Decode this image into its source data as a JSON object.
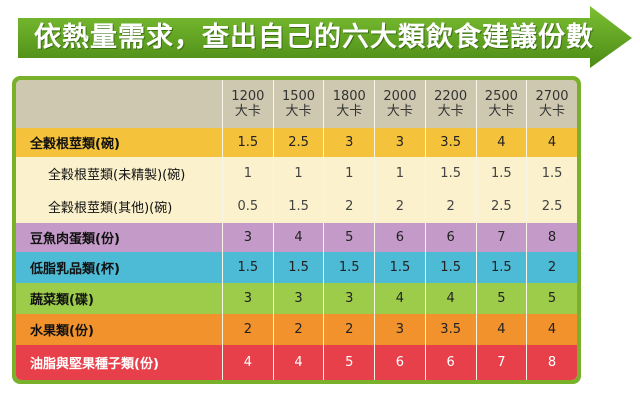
{
  "title": "依熱量需求，查出自己的六大類飲食建議份數",
  "header": {
    "calories": [
      "1200",
      "1500",
      "1800",
      "2000",
      "2200",
      "2500",
      "2700"
    ],
    "unit": "大卡"
  },
  "rows": [
    {
      "label": "全穀根莖類(碗)",
      "values": [
        "1.5",
        "2.5",
        "3",
        "3",
        "3.5",
        "4",
        "4"
      ]
    },
    {
      "label": "全穀根莖類(未精製)(碗)",
      "values": [
        "1",
        "1",
        "1",
        "1",
        "1.5",
        "1.5",
        "1.5"
      ]
    },
    {
      "label": "全穀根莖類(其他)(碗)",
      "values": [
        "0.5",
        "1.5",
        "2",
        "2",
        "2",
        "2.5",
        "2.5"
      ]
    },
    {
      "label": "豆魚肉蛋類(份)",
      "values": [
        "3",
        "4",
        "5",
        "6",
        "6",
        "7",
        "8"
      ]
    },
    {
      "label": "低脂乳品類(杯)",
      "values": [
        "1.5",
        "1.5",
        "1.5",
        "1.5",
        "1.5",
        "1.5",
        "2"
      ]
    },
    {
      "label": "蔬菜類(碟)",
      "values": [
        "3",
        "3",
        "3",
        "4",
        "4",
        "5",
        "5"
      ]
    },
    {
      "label": "水果類(份)",
      "values": [
        "2",
        "2",
        "2",
        "3",
        "3.5",
        "4",
        "4"
      ]
    },
    {
      "label": "油脂與堅果種子類(份)",
      "values": [
        "4",
        "4",
        "5",
        "6",
        "6",
        "7",
        "8"
      ]
    }
  ],
  "colors": {
    "banner": "#5a9a1c",
    "frame": "#7ab12a",
    "header_bg": "#cfc8b0",
    "grains": "#f5c33b",
    "grains_sub": "#fbf1cc",
    "protein": "#c49bc8",
    "dairy": "#4dbad6",
    "vegetables": "#9ccc4a",
    "fruit": "#f2922c",
    "oil": "#e8404a"
  }
}
